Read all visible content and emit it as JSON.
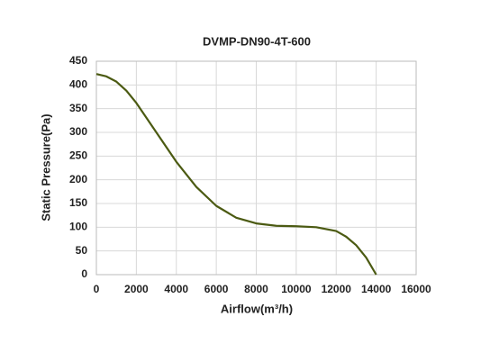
{
  "chart_data": {
    "type": "line",
    "title": "DVMP-DN90-4T-600",
    "x_label": "Airflow(m³/h)",
    "y_label": "Static Pressure(Pa)",
    "x": [
      0,
      500,
      1000,
      1500,
      2000,
      3000,
      4000,
      5000,
      6000,
      7000,
      8000,
      9000,
      10000,
      11000,
      12000,
      12500,
      13000,
      13500,
      14000
    ],
    "series": [
      {
        "name": "DVMP-DN90-4T-600",
        "color": "#4b5a12",
        "values": [
          423,
          418,
          407,
          388,
          362,
          300,
          238,
          185,
          145,
          120,
          108,
          103,
          102,
          100,
          92,
          80,
          62,
          36,
          0
        ]
      }
    ],
    "xlim": [
      0,
      16000
    ],
    "xticks": [
      0,
      2000,
      4000,
      6000,
      8000,
      10000,
      12000,
      14000,
      16000
    ],
    "ylim": [
      0,
      450
    ],
    "yticks": [
      0,
      50,
      100,
      150,
      200,
      250,
      300,
      350,
      400,
      450
    ],
    "grid": true
  }
}
